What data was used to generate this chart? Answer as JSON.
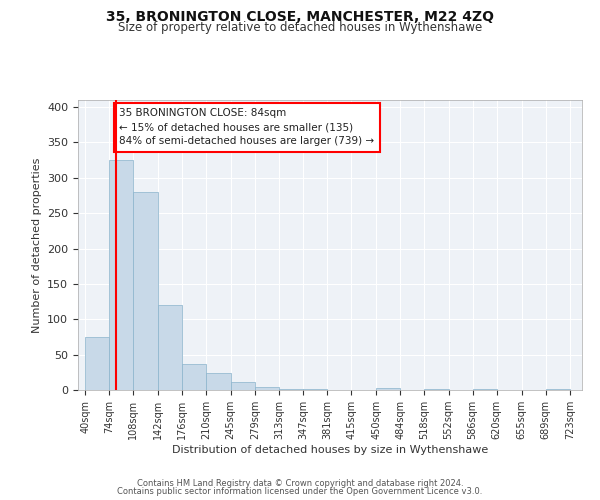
{
  "title": "35, BRONINGTON CLOSE, MANCHESTER, M22 4ZQ",
  "subtitle": "Size of property relative to detached houses in Wythenshawe",
  "xlabel": "Distribution of detached houses by size in Wythenshawe",
  "ylabel": "Number of detached properties",
  "bar_left_edges": [
    40,
    74,
    108,
    142,
    176,
    210,
    245,
    279,
    313,
    347,
    381,
    415,
    450,
    484,
    518,
    552,
    586,
    620,
    655,
    689
  ],
  "bar_widths": [
    34,
    34,
    34,
    34,
    34,
    35,
    34,
    34,
    34,
    34,
    34,
    35,
    34,
    34,
    34,
    34,
    34,
    35,
    34,
    34
  ],
  "bar_heights": [
    75,
    325,
    280,
    120,
    37,
    24,
    11,
    4,
    2,
    1,
    0,
    0,
    3,
    0,
    2,
    0,
    1,
    0,
    0,
    1
  ],
  "bar_color": "#c8d9e8",
  "bar_edge_color": "#8ab3cc",
  "x_tick_labels": [
    "40sqm",
    "74sqm",
    "108sqm",
    "142sqm",
    "176sqm",
    "210sqm",
    "245sqm",
    "279sqm",
    "313sqm",
    "347sqm",
    "381sqm",
    "415sqm",
    "450sqm",
    "484sqm",
    "518sqm",
    "552sqm",
    "586sqm",
    "620sqm",
    "655sqm",
    "689sqm",
    "723sqm"
  ],
  "x_tick_positions": [
    40,
    74,
    108,
    142,
    176,
    210,
    245,
    279,
    313,
    347,
    381,
    415,
    450,
    484,
    518,
    552,
    586,
    620,
    655,
    689,
    723
  ],
  "ylim": [
    0,
    410
  ],
  "xlim": [
    30,
    740
  ],
  "y_ticks": [
    0,
    50,
    100,
    150,
    200,
    250,
    300,
    350,
    400
  ],
  "red_line_x": 84,
  "annotation_title": "35 BRONINGTON CLOSE: 84sqm",
  "annotation_line1": "← 15% of detached houses are smaller (135)",
  "annotation_line2": "84% of semi-detached houses are larger (739) →",
  "bg_color": "#ffffff",
  "plot_bg_color": "#eef2f7",
  "grid_color": "#ffffff",
  "footer_line1": "Contains HM Land Registry data © Crown copyright and database right 2024.",
  "footer_line2": "Contains public sector information licensed under the Open Government Licence v3.0."
}
